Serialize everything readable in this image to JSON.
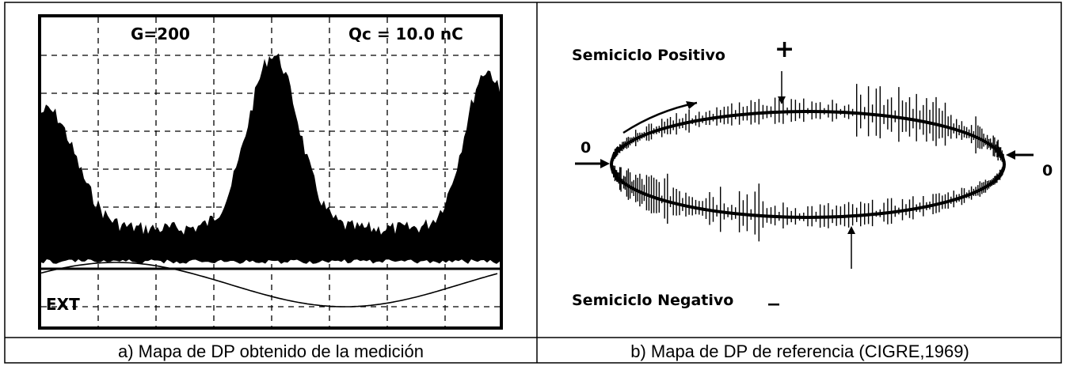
{
  "figure_a": {
    "gain_label": "G=200",
    "charge_label": "Qc = 10.0 nC",
    "ext_label": "EXT",
    "caption": "a) Mapa de DP obtenido de la medición"
  },
  "figure_b": {
    "positive_label": "Semiciclo Positivo",
    "plus_sign": "+",
    "zero_left": "0",
    "zero_right": "0",
    "negative_label": "Semiciclo Negativo",
    "minus_sign": "_",
    "caption": "b) Mapa de DP de referencia (CIGRE,1969)"
  }
}
